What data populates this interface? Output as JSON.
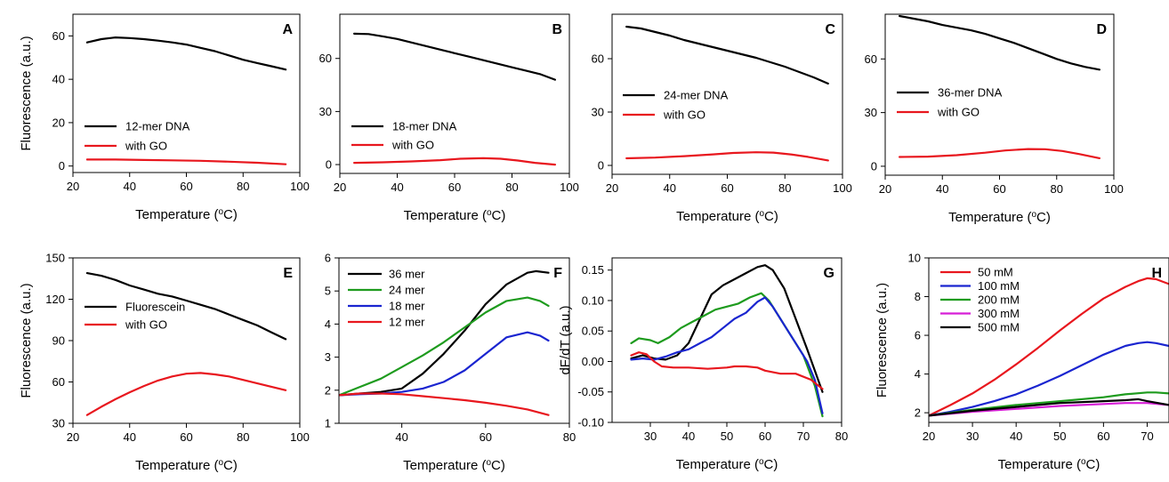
{
  "chart_data": [
    {
      "type": "line",
      "panel_label": "A",
      "xlabel": "Temperature (oC)",
      "ylabel": "Fluorescence (a.u.)",
      "xlim": [
        20,
        100
      ],
      "ylim": [
        -3,
        70
      ],
      "xticks": [
        20,
        40,
        60,
        80,
        100
      ],
      "yticks": [
        0,
        20,
        40,
        60
      ],
      "legend_position": "middle-left",
      "series": [
        {
          "name": "12-mer DNA",
          "color": "#000000",
          "x": [
            25,
            30,
            35,
            40,
            45,
            50,
            55,
            60,
            65,
            70,
            75,
            80,
            85,
            90,
            95
          ],
          "y": [
            57,
            58.5,
            59.3,
            59,
            58.5,
            57.8,
            57,
            56,
            54.5,
            53,
            51,
            49,
            47.5,
            46,
            44.5
          ]
        },
        {
          "name": "with GO",
          "color": "#e8171e",
          "x": [
            25,
            35,
            45,
            55,
            65,
            75,
            85,
            95
          ],
          "y": [
            3,
            3,
            2.8,
            2.6,
            2.4,
            2,
            1.5,
            0.8
          ]
        }
      ]
    },
    {
      "type": "line",
      "panel_label": "B",
      "xlabel": "Temperature (oC)",
      "ylabel": "",
      "xlim": [
        20,
        100
      ],
      "ylim": [
        -5,
        85
      ],
      "xticks": [
        20,
        40,
        60,
        80,
        100
      ],
      "yticks": [
        0,
        30,
        60
      ],
      "legend_position": "middle-left",
      "series": [
        {
          "name": "18-mer DNA",
          "color": "#000000",
          "x": [
            25,
            30,
            35,
            40,
            45,
            50,
            55,
            60,
            65,
            70,
            75,
            80,
            85,
            90,
            95
          ],
          "y": [
            74,
            73.8,
            72.5,
            71,
            69,
            67,
            65,
            63,
            61,
            59,
            57,
            55,
            53,
            51,
            48
          ]
        },
        {
          "name": "with GO",
          "color": "#e8171e",
          "x": [
            25,
            35,
            45,
            55,
            62,
            70,
            76,
            82,
            88,
            95
          ],
          "y": [
            1,
            1.3,
            1.8,
            2.5,
            3.3,
            3.6,
            3.3,
            2.3,
            1,
            0
          ]
        }
      ]
    },
    {
      "type": "line",
      "panel_label": "C",
      "xlabel": "Temperature (oC)",
      "ylabel": "",
      "xlim": [
        20,
        100
      ],
      "ylim": [
        -5,
        85
      ],
      "xticks": [
        20,
        40,
        60,
        80,
        100
      ],
      "yticks": [
        0,
        30,
        60
      ],
      "legend_position": "middle-left",
      "series": [
        {
          "name": "24-mer DNA",
          "color": "#000000",
          "x": [
            25,
            30,
            35,
            40,
            45,
            50,
            55,
            60,
            65,
            70,
            75,
            80,
            85,
            90,
            95
          ],
          "y": [
            78,
            77,
            75,
            73,
            70.5,
            68.5,
            66.5,
            64.5,
            62.5,
            60.5,
            58,
            55.5,
            52.5,
            49.5,
            46
          ]
        },
        {
          "name": "with GO",
          "color": "#e8171e",
          "x": [
            25,
            35,
            45,
            55,
            62,
            70,
            76,
            82,
            88,
            95
          ],
          "y": [
            4,
            4.4,
            5.2,
            6.2,
            7,
            7.4,
            7.2,
            6.2,
            4.8,
            2.8
          ]
        }
      ]
    },
    {
      "type": "line",
      "panel_label": "D",
      "xlabel": "Temperature (oC)",
      "ylabel": "",
      "xlim": [
        20,
        100
      ],
      "ylim": [
        -5,
        85
      ],
      "xticks": [
        20,
        40,
        60,
        80,
        100
      ],
      "yticks": [
        0,
        30,
        60
      ],
      "legend_position": "middle-left",
      "series": [
        {
          "name": "36-mer DNA",
          "color": "#000000",
          "x": [
            25,
            30,
            35,
            40,
            45,
            50,
            55,
            60,
            65,
            70,
            75,
            80,
            85,
            90,
            95
          ],
          "y": [
            84,
            82.5,
            81,
            79,
            77.5,
            76,
            74,
            71.5,
            69,
            66,
            63,
            60,
            57.5,
            55.5,
            54
          ]
        },
        {
          "name": "with GO",
          "color": "#e8171e",
          "x": [
            25,
            35,
            45,
            55,
            62,
            70,
            76,
            82,
            88,
            95
          ],
          "y": [
            5.2,
            5.4,
            6.2,
            7.6,
            8.8,
            9.6,
            9.5,
            8.5,
            6.8,
            4.5
          ]
        }
      ]
    },
    {
      "type": "line",
      "panel_label": "E",
      "xlabel": "Temperature (oC)",
      "ylabel": "Fluorescence (a.u.)",
      "xlim": [
        20,
        100
      ],
      "ylim": [
        30,
        150
      ],
      "xticks": [
        20,
        40,
        60,
        80,
        100
      ],
      "yticks": [
        30,
        60,
        90,
        120,
        150
      ],
      "legend_position": "middle-left",
      "series": [
        {
          "name": "Fluorescein",
          "color": "#000000",
          "x": [
            25,
            30,
            35,
            40,
            45,
            50,
            55,
            60,
            65,
            70,
            75,
            80,
            85,
            90,
            95
          ],
          "y": [
            139,
            137,
            134,
            130,
            127,
            124,
            122,
            119,
            116,
            113,
            109,
            105,
            101,
            96,
            91
          ]
        },
        {
          "name": "with GO",
          "color": "#e8171e",
          "x": [
            25,
            30,
            35,
            40,
            45,
            50,
            55,
            60,
            65,
            70,
            75,
            80,
            85,
            90,
            95
          ],
          "y": [
            36,
            42,
            47.5,
            52.5,
            57,
            61,
            64,
            66,
            66.5,
            65.5,
            64,
            61.5,
            59,
            56.5,
            54
          ]
        }
      ]
    },
    {
      "type": "line",
      "panel_label": "F",
      "xlabel": "Temperature (oC)",
      "ylabel": "",
      "xlim": [
        25,
        80
      ],
      "ylim": [
        1,
        6
      ],
      "xticks": [
        40,
        60,
        80
      ],
      "yticks": [
        1,
        2,
        3,
        4,
        5,
        6
      ],
      "legend_position": "top-left",
      "series": [
        {
          "name": "36 mer",
          "color": "#000000",
          "x": [
            25,
            30,
            35,
            40,
            45,
            50,
            55,
            60,
            65,
            70,
            72,
            75
          ],
          "y": [
            1.85,
            1.9,
            1.95,
            2.05,
            2.5,
            3.1,
            3.8,
            4.6,
            5.2,
            5.55,
            5.6,
            5.55
          ]
        },
        {
          "name": "24 mer",
          "color": "#1e9b1e",
          "x": [
            25,
            30,
            35,
            40,
            45,
            50,
            55,
            60,
            65,
            70,
            73,
            75
          ],
          "y": [
            1.85,
            2.1,
            2.35,
            2.7,
            3.05,
            3.45,
            3.9,
            4.35,
            4.7,
            4.8,
            4.7,
            4.55
          ]
        },
        {
          "name": "18 mer",
          "color": "#1a25d0",
          "x": [
            25,
            30,
            35,
            40,
            45,
            50,
            55,
            60,
            65,
            70,
            73,
            75
          ],
          "y": [
            1.85,
            1.88,
            1.9,
            1.95,
            2.05,
            2.25,
            2.6,
            3.1,
            3.6,
            3.75,
            3.65,
            3.5
          ]
        },
        {
          "name": "12 mer",
          "color": "#e8171e",
          "x": [
            25,
            30,
            35,
            40,
            45,
            50,
            55,
            60,
            65,
            70,
            75
          ],
          "y": [
            1.85,
            1.9,
            1.9,
            1.88,
            1.82,
            1.76,
            1.7,
            1.62,
            1.53,
            1.42,
            1.25
          ]
        }
      ]
    },
    {
      "type": "line",
      "panel_label": "G",
      "xlabel": "Temperature (oC)",
      "ylabel": "dF/dT (a.u.)",
      "xlim": [
        20,
        80
      ],
      "ylim": [
        -0.1,
        0.17
      ],
      "xticks": [
        30,
        40,
        50,
        60,
        70,
        80
      ],
      "yticks": [
        -0.1,
        -0.05,
        0.0,
        0.05,
        0.1,
        0.15
      ],
      "ytick_labels": [
        "-0.10",
        "-0.05",
        "0.00",
        "0.05",
        "0.10",
        "0.15"
      ],
      "series": [
        {
          "name": "",
          "color": "#000000",
          "x": [
            25,
            28,
            31,
            34,
            37,
            40,
            43,
            46,
            49,
            52,
            55,
            58,
            60,
            62,
            65,
            68,
            71,
            73,
            75
          ],
          "y": [
            0.005,
            0.01,
            0.005,
            0.003,
            0.01,
            0.03,
            0.07,
            0.11,
            0.125,
            0.135,
            0.145,
            0.155,
            0.158,
            0.15,
            0.12,
            0.07,
            0.02,
            -0.015,
            -0.05
          ]
        },
        {
          "name": "",
          "color": "#1e9b1e",
          "x": [
            25,
            27,
            30,
            32,
            35,
            38,
            41,
            44,
            47,
            50,
            53,
            56,
            59,
            61,
            64,
            67,
            70,
            73,
            75
          ],
          "y": [
            0.03,
            0.038,
            0.035,
            0.03,
            0.04,
            0.055,
            0.065,
            0.075,
            0.085,
            0.09,
            0.095,
            0.105,
            0.112,
            0.1,
            0.07,
            0.04,
            0.01,
            -0.04,
            -0.09
          ]
        },
        {
          "name": "",
          "color": "#1a25d0",
          "x": [
            25,
            28,
            31,
            34,
            37,
            40,
            43,
            46,
            49,
            52,
            55,
            58,
            60,
            62,
            65,
            68,
            71,
            73,
            75
          ],
          "y": [
            0.003,
            0.005,
            0.003,
            0.008,
            0.015,
            0.02,
            0.03,
            0.04,
            0.055,
            0.07,
            0.08,
            0.098,
            0.105,
            0.09,
            0.06,
            0.03,
            0.0,
            -0.03,
            -0.085
          ]
        },
        {
          "name": "",
          "color": "#e8171e",
          "x": [
            25,
            27,
            29,
            31,
            33,
            36,
            40,
            45,
            50,
            52,
            55,
            58,
            60,
            64,
            68,
            72,
            75
          ],
          "y": [
            0.01,
            0.015,
            0.012,
            0.0,
            -0.008,
            -0.01,
            -0.01,
            -0.012,
            -0.01,
            -0.008,
            -0.008,
            -0.01,
            -0.015,
            -0.02,
            -0.02,
            -0.03,
            -0.045
          ]
        }
      ]
    },
    {
      "type": "line",
      "panel_label": "H",
      "xlabel": "Temperature (oC)",
      "ylabel": "Fluorescence (a.u.)",
      "xlim": [
        20,
        75
      ],
      "ylim": [
        1.5,
        10
      ],
      "xticks": [
        20,
        30,
        40,
        50,
        60,
        70
      ],
      "yticks": [
        2,
        4,
        6,
        8,
        10
      ],
      "legend_position": "top-left",
      "series": [
        {
          "name": "50 mM",
          "color": "#e8171e",
          "x": [
            20,
            25,
            30,
            35,
            40,
            45,
            50,
            55,
            60,
            65,
            68,
            70,
            72,
            75
          ],
          "y": [
            1.85,
            2.4,
            3.0,
            3.7,
            4.5,
            5.35,
            6.25,
            7.1,
            7.9,
            8.5,
            8.8,
            8.95,
            8.9,
            8.65
          ]
        },
        {
          "name": "100 mM",
          "color": "#1a25d0",
          "x": [
            20,
            25,
            30,
            35,
            40,
            45,
            50,
            55,
            60,
            65,
            68,
            70,
            72,
            75
          ],
          "y": [
            1.85,
            2.05,
            2.3,
            2.6,
            2.95,
            3.4,
            3.9,
            4.45,
            5.0,
            5.45,
            5.6,
            5.65,
            5.6,
            5.45
          ]
        },
        {
          "name": "200 mM",
          "color": "#1e9b1e",
          "x": [
            20,
            30,
            40,
            50,
            60,
            65,
            70,
            72,
            75
          ],
          "y": [
            1.85,
            2.15,
            2.4,
            2.6,
            2.8,
            2.95,
            3.05,
            3.05,
            3.0
          ]
        },
        {
          "name": "300 mM",
          "color": "#d61ed6",
          "x": [
            20,
            30,
            40,
            50,
            60,
            65,
            70,
            75
          ],
          "y": [
            1.85,
            2.05,
            2.2,
            2.35,
            2.45,
            2.5,
            2.5,
            2.4
          ]
        },
        {
          "name": "500 mM",
          "color": "#000000",
          "x": [
            20,
            30,
            40,
            50,
            60,
            65,
            68,
            70,
            75
          ],
          "y": [
            1.85,
            2.1,
            2.3,
            2.5,
            2.6,
            2.65,
            2.7,
            2.6,
            2.4
          ]
        }
      ]
    }
  ]
}
